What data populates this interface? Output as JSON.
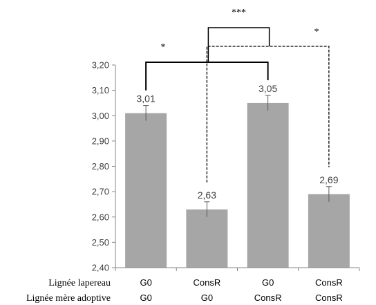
{
  "chart_data": {
    "type": "bar",
    "categories": [
      {
        "lapereau": "G0",
        "mere": "G0"
      },
      {
        "lapereau": "ConsR",
        "mere": "G0"
      },
      {
        "lapereau": "G0",
        "mere": "ConsR"
      },
      {
        "lapereau": "ConsR",
        "mere": "ConsR"
      }
    ],
    "values": [
      3.01,
      2.63,
      3.05,
      2.69
    ],
    "value_labels": [
      "3,01",
      "2,63",
      "3,05",
      "2,69"
    ],
    "errors": [
      0.03,
      0.03,
      0.03,
      0.03
    ],
    "ylim": [
      2.4,
      3.2
    ],
    "y_ticks": [
      "2,40",
      "2,50",
      "2,60",
      "2,70",
      "2,80",
      "2,90",
      "3,00",
      "3,10",
      "3,20"
    ],
    "row_labels": [
      "Lignée lapereau",
      "Lignée mère adoptive"
    ],
    "bar_color": "#a6a6a6",
    "significance": [
      {
        "from": 0,
        "to": 2,
        "label": "*",
        "style": "solid"
      },
      {
        "from": 1,
        "to": 3,
        "label": "*",
        "style": "dashed"
      },
      {
        "from_pair": [
          0,
          2
        ],
        "to_pair": [
          1,
          3
        ],
        "label": "***",
        "style": "solid"
      }
    ]
  }
}
